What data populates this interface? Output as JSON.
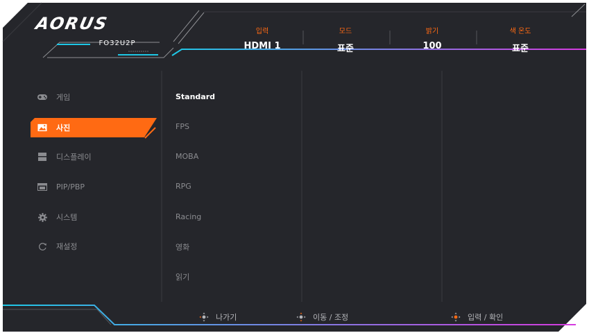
{
  "brand": {
    "logo_text": "AORUS",
    "model": "FO32U2P"
  },
  "header": {
    "columns": [
      {
        "label": "입력",
        "value": "HDMI 1"
      },
      {
        "label": "모드",
        "value": "표준"
      },
      {
        "label": "밝기",
        "value": "100"
      },
      {
        "label": "색 온도",
        "value": "표준"
      }
    ]
  },
  "sidebar": {
    "items": [
      {
        "label": "게임",
        "icon": "gamepad-icon"
      },
      {
        "label": "사진",
        "icon": "picture-icon",
        "active": true
      },
      {
        "label": "디스플레이",
        "icon": "display-icon"
      },
      {
        "label": "PIP/PBP",
        "icon": "pip-icon"
      },
      {
        "label": "시스템",
        "icon": "gear-icon"
      },
      {
        "label": "재설정",
        "icon": "reset-icon"
      }
    ]
  },
  "submenu": {
    "items": [
      "Standard",
      "FPS",
      "MOBA",
      "RPG",
      "Racing",
      "영화",
      "읽기"
    ]
  },
  "footer": {
    "hints": [
      {
        "label": "나가기",
        "icon": "joystick-exit-icon"
      },
      {
        "label": "이동 / 조정",
        "icon": "joystick-move-icon"
      },
      {
        "label": "입력 / 확인",
        "icon": "joystick-enter-icon"
      }
    ]
  },
  "colors": {
    "accent": "#ff6a13",
    "cyan": "#1ec8e6",
    "magenta": "#d63ae0",
    "panel": "#25262b"
  }
}
